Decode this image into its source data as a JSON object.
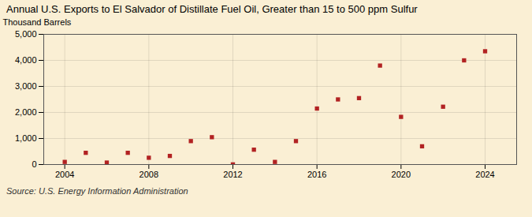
{
  "chart_data": {
    "type": "scatter",
    "title": "Annual U.S. Exports to El Salvador of Distillate Fuel Oil, Greater than 15 to 500 ppm Sulfur",
    "ylabel": "Thousand Barrels",
    "source": "Source: U.S. Energy Information Administration",
    "x": [
      2004,
      2005,
      2006,
      2007,
      2008,
      2009,
      2010,
      2011,
      2012,
      2013,
      2014,
      2015,
      2016,
      2017,
      2018,
      2019,
      2020,
      2021,
      2022,
      2023,
      2024
    ],
    "values": [
      100,
      450,
      75,
      450,
      260,
      330,
      900,
      1050,
      5,
      570,
      100,
      900,
      2150,
      2500,
      2550,
      3800,
      1830,
      700,
      2220,
      4000,
      4350
    ],
    "color": "#b22222",
    "marker": "square",
    "xlim": [
      2003.0,
      2025.5
    ],
    "xticks": [
      2004,
      2008,
      2012,
      2016,
      2020,
      2024
    ],
    "ylim": [
      0,
      5000
    ],
    "yticks": [
      0,
      {
        "value": 1000,
        "label": "1,000"
      },
      {
        "value": 2000,
        "label": "2,000"
      },
      {
        "value": 3000,
        "label": "3,000"
      },
      {
        "value": 4000,
        "label": "4,000"
      },
      {
        "value": 5000,
        "label": "5,000"
      }
    ],
    "grid": true
  }
}
